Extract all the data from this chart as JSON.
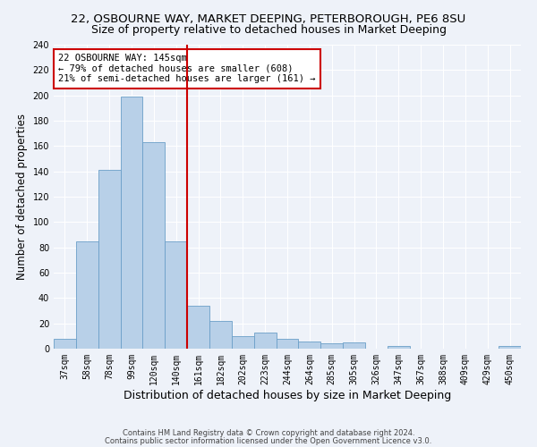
{
  "title1": "22, OSBOURNE WAY, MARKET DEEPING, PETERBOROUGH, PE6 8SU",
  "title2": "Size of property relative to detached houses in Market Deeping",
  "xlabel": "Distribution of detached houses by size in Market Deeping",
  "ylabel": "Number of detached properties",
  "categories": [
    "37sqm",
    "58sqm",
    "78sqm",
    "99sqm",
    "120sqm",
    "140sqm",
    "161sqm",
    "182sqm",
    "202sqm",
    "223sqm",
    "244sqm",
    "264sqm",
    "285sqm",
    "305sqm",
    "326sqm",
    "347sqm",
    "367sqm",
    "388sqm",
    "409sqm",
    "429sqm",
    "450sqm"
  ],
  "values": [
    8,
    85,
    141,
    199,
    163,
    85,
    34,
    22,
    10,
    13,
    8,
    6,
    4,
    5,
    0,
    2,
    0,
    0,
    0,
    0,
    2
  ],
  "bar_color": "#b8d0e8",
  "bar_edge_color": "#6b9fc8",
  "vline_color": "#cc0000",
  "vline_x_index": 5,
  "annotation_text": "22 OSBOURNE WAY: 145sqm\n← 79% of detached houses are smaller (608)\n21% of semi-detached houses are larger (161) →",
  "annotation_box_color": "#ffffff",
  "annotation_box_edge": "#cc0000",
  "ylim": [
    0,
    240
  ],
  "yticks": [
    0,
    20,
    40,
    60,
    80,
    100,
    120,
    140,
    160,
    180,
    200,
    220,
    240
  ],
  "footer1": "Contains HM Land Registry data © Crown copyright and database right 2024.",
  "footer2": "Contains public sector information licensed under the Open Government Licence v3.0.",
  "bg_color": "#eef2f9",
  "grid_color": "#ffffff",
  "title1_fontsize": 9.5,
  "title2_fontsize": 9,
  "tick_fontsize": 7,
  "ylabel_fontsize": 8.5,
  "xlabel_fontsize": 9,
  "footer_fontsize": 6,
  "annot_fontsize": 7.5
}
